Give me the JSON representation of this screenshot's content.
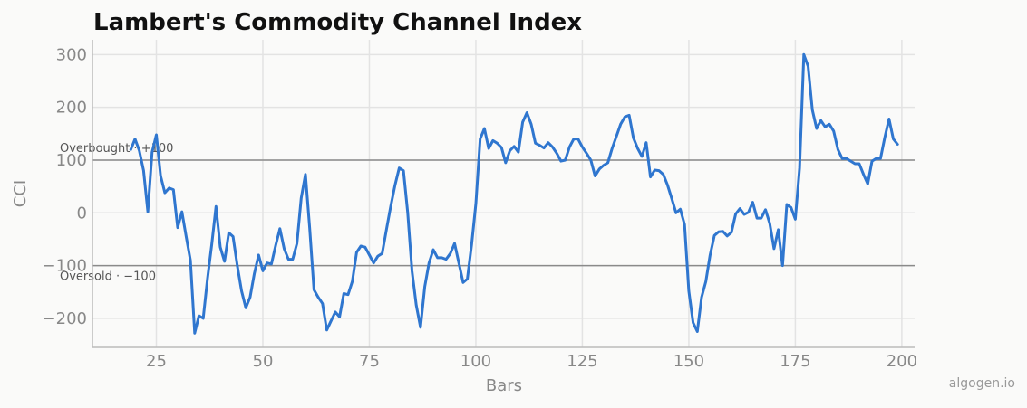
{
  "chart_data": {
    "type": "line",
    "title": "Lambert's Commodity Channel Index",
    "xlabel": "Bars",
    "ylabel": "CCI",
    "xlim": [
      10,
      203
    ],
    "ylim": [
      -255,
      328
    ],
    "xticks": [
      25,
      50,
      75,
      100,
      125,
      150,
      175,
      200
    ],
    "yticks": [
      -200,
      -100,
      0,
      100,
      200,
      300
    ],
    "ytick_labels": [
      "−200",
      "−100",
      "0",
      "100",
      "200",
      "300"
    ],
    "grid": true,
    "line_color": "#2f76cf",
    "reference_lines": [
      {
        "value": 100,
        "label": "Overbought · +100"
      },
      {
        "value": -100,
        "label": "Oversold · −100"
      }
    ],
    "series": [
      {
        "x": [
          19,
          20,
          21,
          22,
          23,
          24,
          25,
          26,
          27,
          28,
          29,
          30,
          31,
          32,
          33,
          34,
          35,
          36,
          37,
          38,
          39,
          40,
          41,
          42,
          43,
          44,
          45,
          46,
          47,
          48,
          49,
          50,
          51,
          52,
          53,
          54,
          55,
          56,
          57,
          58,
          59,
          60,
          61,
          62,
          63,
          64,
          65,
          66,
          67,
          68,
          69,
          70,
          71,
          72,
          73,
          74,
          75,
          76,
          77,
          78,
          79,
          80,
          81,
          82,
          83,
          84,
          85,
          86,
          87,
          88,
          89,
          90,
          91,
          92,
          93,
          94,
          95,
          96,
          97,
          98,
          99,
          100,
          101,
          102,
          103,
          104,
          105,
          106,
          107,
          108,
          109,
          110,
          111,
          112,
          113,
          114,
          115,
          116,
          117,
          118,
          119,
          120,
          121,
          122,
          123,
          124,
          125,
          126,
          127,
          128,
          129,
          130,
          131,
          132,
          133,
          134,
          135,
          136,
          137,
          138,
          139,
          140,
          141,
          142,
          143,
          144,
          145,
          146,
          147,
          148,
          149,
          150,
          151,
          152,
          153,
          154,
          155,
          156,
          157,
          158,
          159,
          160,
          161,
          162,
          163,
          164,
          165,
          166,
          167,
          168,
          169,
          170,
          171,
          172,
          173,
          174,
          175,
          176,
          177,
          178,
          179,
          180,
          181,
          182,
          183,
          184,
          185,
          186,
          187,
          188,
          189,
          190,
          191,
          192,
          193,
          194,
          195,
          196,
          197,
          198,
          199
        ],
        "values": [
          120,
          140,
          118,
          80,
          2,
          115,
          148,
          70,
          38,
          47,
          44,
          -28,
          2,
          -45,
          -90,
          -228,
          -195,
          -200,
          -125,
          -60,
          12,
          -65,
          -92,
          -38,
          -45,
          -100,
          -148,
          -180,
          -160,
          -115,
          -80,
          -110,
          -95,
          -97,
          -62,
          -30,
          -68,
          -88,
          -88,
          -58,
          28,
          73,
          -30,
          -146,
          -160,
          -172,
          -222,
          -205,
          -188,
          -197,
          -153,
          -155,
          -130,
          -75,
          -63,
          -65,
          -80,
          -95,
          -82,
          -77,
          -32,
          12,
          52,
          85,
          80,
          0,
          -110,
          -175,
          -217,
          -140,
          -95,
          -70,
          -85,
          -85,
          -88,
          -77,
          -58,
          -95,
          -132,
          -125,
          -60,
          18,
          140,
          160,
          122,
          137,
          132,
          124,
          95,
          118,
          126,
          115,
          172,
          190,
          168,
          132,
          128,
          123,
          133,
          125,
          113,
          98,
          100,
          125,
          140,
          140,
          125,
          113,
          100,
          70,
          83,
          90,
          95,
          122,
          145,
          168,
          182,
          185,
          142,
          122,
          107,
          133,
          68,
          81,
          80,
          73,
          53,
          27,
          0,
          7,
          -22,
          -148,
          -208,
          -225,
          -160,
          -130,
          -80,
          -43,
          -36,
          -35,
          -44,
          -37,
          -2,
          8,
          -3,
          1,
          20,
          -10,
          -10,
          6,
          -20,
          -68,
          -32,
          -100,
          16,
          10,
          -12,
          85,
          300,
          278,
          195,
          160,
          175,
          163,
          168,
          155,
          120,
          103,
          103,
          98,
          93,
          93,
          73,
          55,
          98,
          103,
          103,
          143,
          178,
          140,
          130
        ]
      }
    ]
  },
  "watermark": "algogen.io"
}
